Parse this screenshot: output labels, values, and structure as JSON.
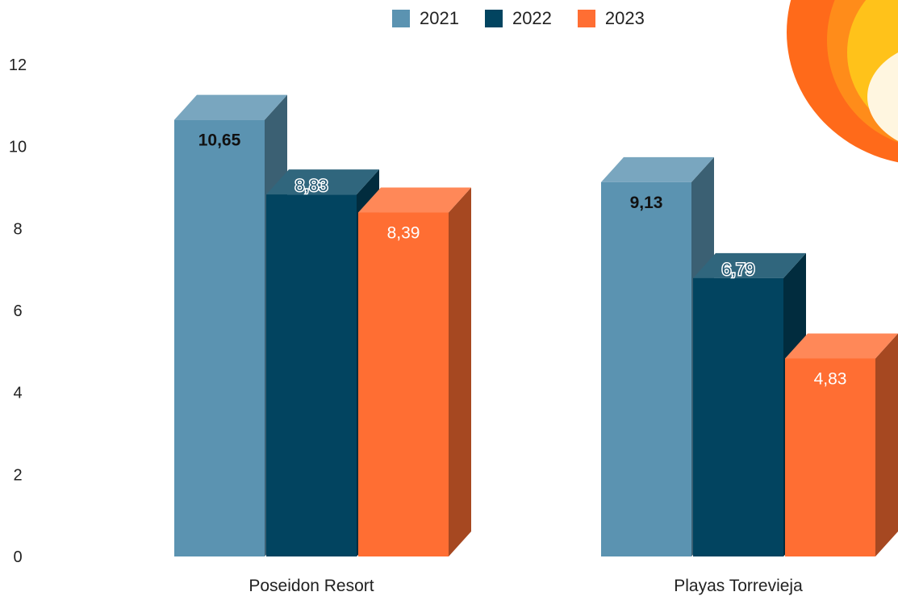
{
  "chart_data": {
    "type": "bar",
    "categories": [
      "Poseidon Resort",
      "Playas Torrevieja"
    ],
    "series": [
      {
        "name": "2021",
        "values": [
          10.65,
          9.13
        ],
        "labels": [
          "10,65",
          "9,13"
        ],
        "color": "#5b93b1",
        "label_color": "#111111"
      },
      {
        "name": "2022",
        "values": [
          8.83,
          6.79
        ],
        "labels": [
          "8,83",
          "6,79"
        ],
        "color": "#024460",
        "label_color": "#1f5670"
      },
      {
        "name": "2023",
        "values": [
          8.39,
          4.83
        ],
        "labels": [
          "8,39",
          "4,83"
        ],
        "color": "#ff6e33",
        "label_color": "#ffffff"
      }
    ],
    "yticks": [
      "0",
      "2",
      "4",
      "6",
      "8",
      "10",
      "12"
    ],
    "ylim": [
      0,
      12
    ],
    "legend_position": "top-center",
    "title": "",
    "xlabel": "",
    "ylabel": ""
  }
}
